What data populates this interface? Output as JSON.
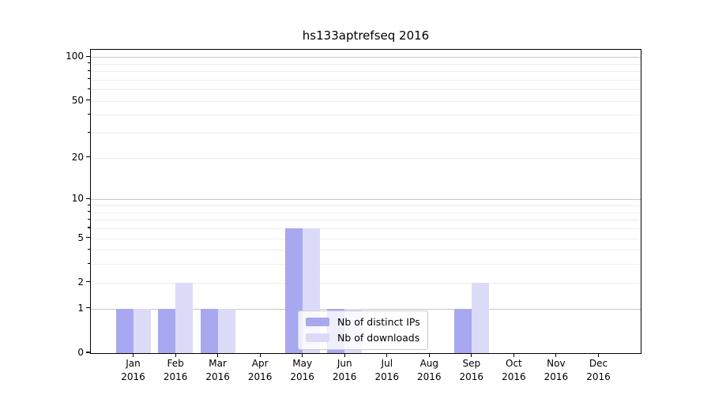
{
  "chart_data": {
    "type": "bar",
    "title": "hs133aptrefseq 2016",
    "categories": [
      "Jan",
      "Feb",
      "Mar",
      "Apr",
      "May",
      "Jun",
      "Jul",
      "Aug",
      "Sep",
      "Oct",
      "Nov",
      "Dec"
    ],
    "category_year": "2016",
    "series": [
      {
        "name": "Nb of distinct IPs",
        "color": "#a8a8f0",
        "values": [
          1,
          1,
          1,
          0,
          6,
          1,
          0,
          0,
          1,
          0,
          0,
          0
        ]
      },
      {
        "name": "Nb of downloads",
        "color": "#dbdbf8",
        "values": [
          1,
          2,
          1,
          0,
          6,
          1,
          0,
          0,
          2,
          0,
          0,
          0
        ]
      }
    ],
    "yscale": "log10(1+x)",
    "ylim": [
      0,
      112
    ],
    "ytick_values": [
      0,
      1,
      2,
      5,
      10,
      20,
      50,
      100
    ],
    "ytick_labels": [
      "0",
      "1",
      "2",
      "5",
      "10",
      "20",
      "50",
      "100"
    ],
    "grid": {
      "major_values": [
        1,
        10,
        100
      ],
      "minor_values": [
        2,
        3,
        4,
        5,
        6,
        7,
        8,
        9,
        20,
        30,
        40,
        50,
        60,
        70,
        80,
        90
      ]
    },
    "legend": {
      "position": "lower center"
    }
  },
  "colors": {
    "bar_distinct_ips": "#a8a8f0",
    "bar_downloads": "#dbdbf8",
    "grid_major": "#c6c6c6",
    "grid_minor": "#ededed",
    "axis": "#000000",
    "legend_border": "#cbcbcb"
  }
}
